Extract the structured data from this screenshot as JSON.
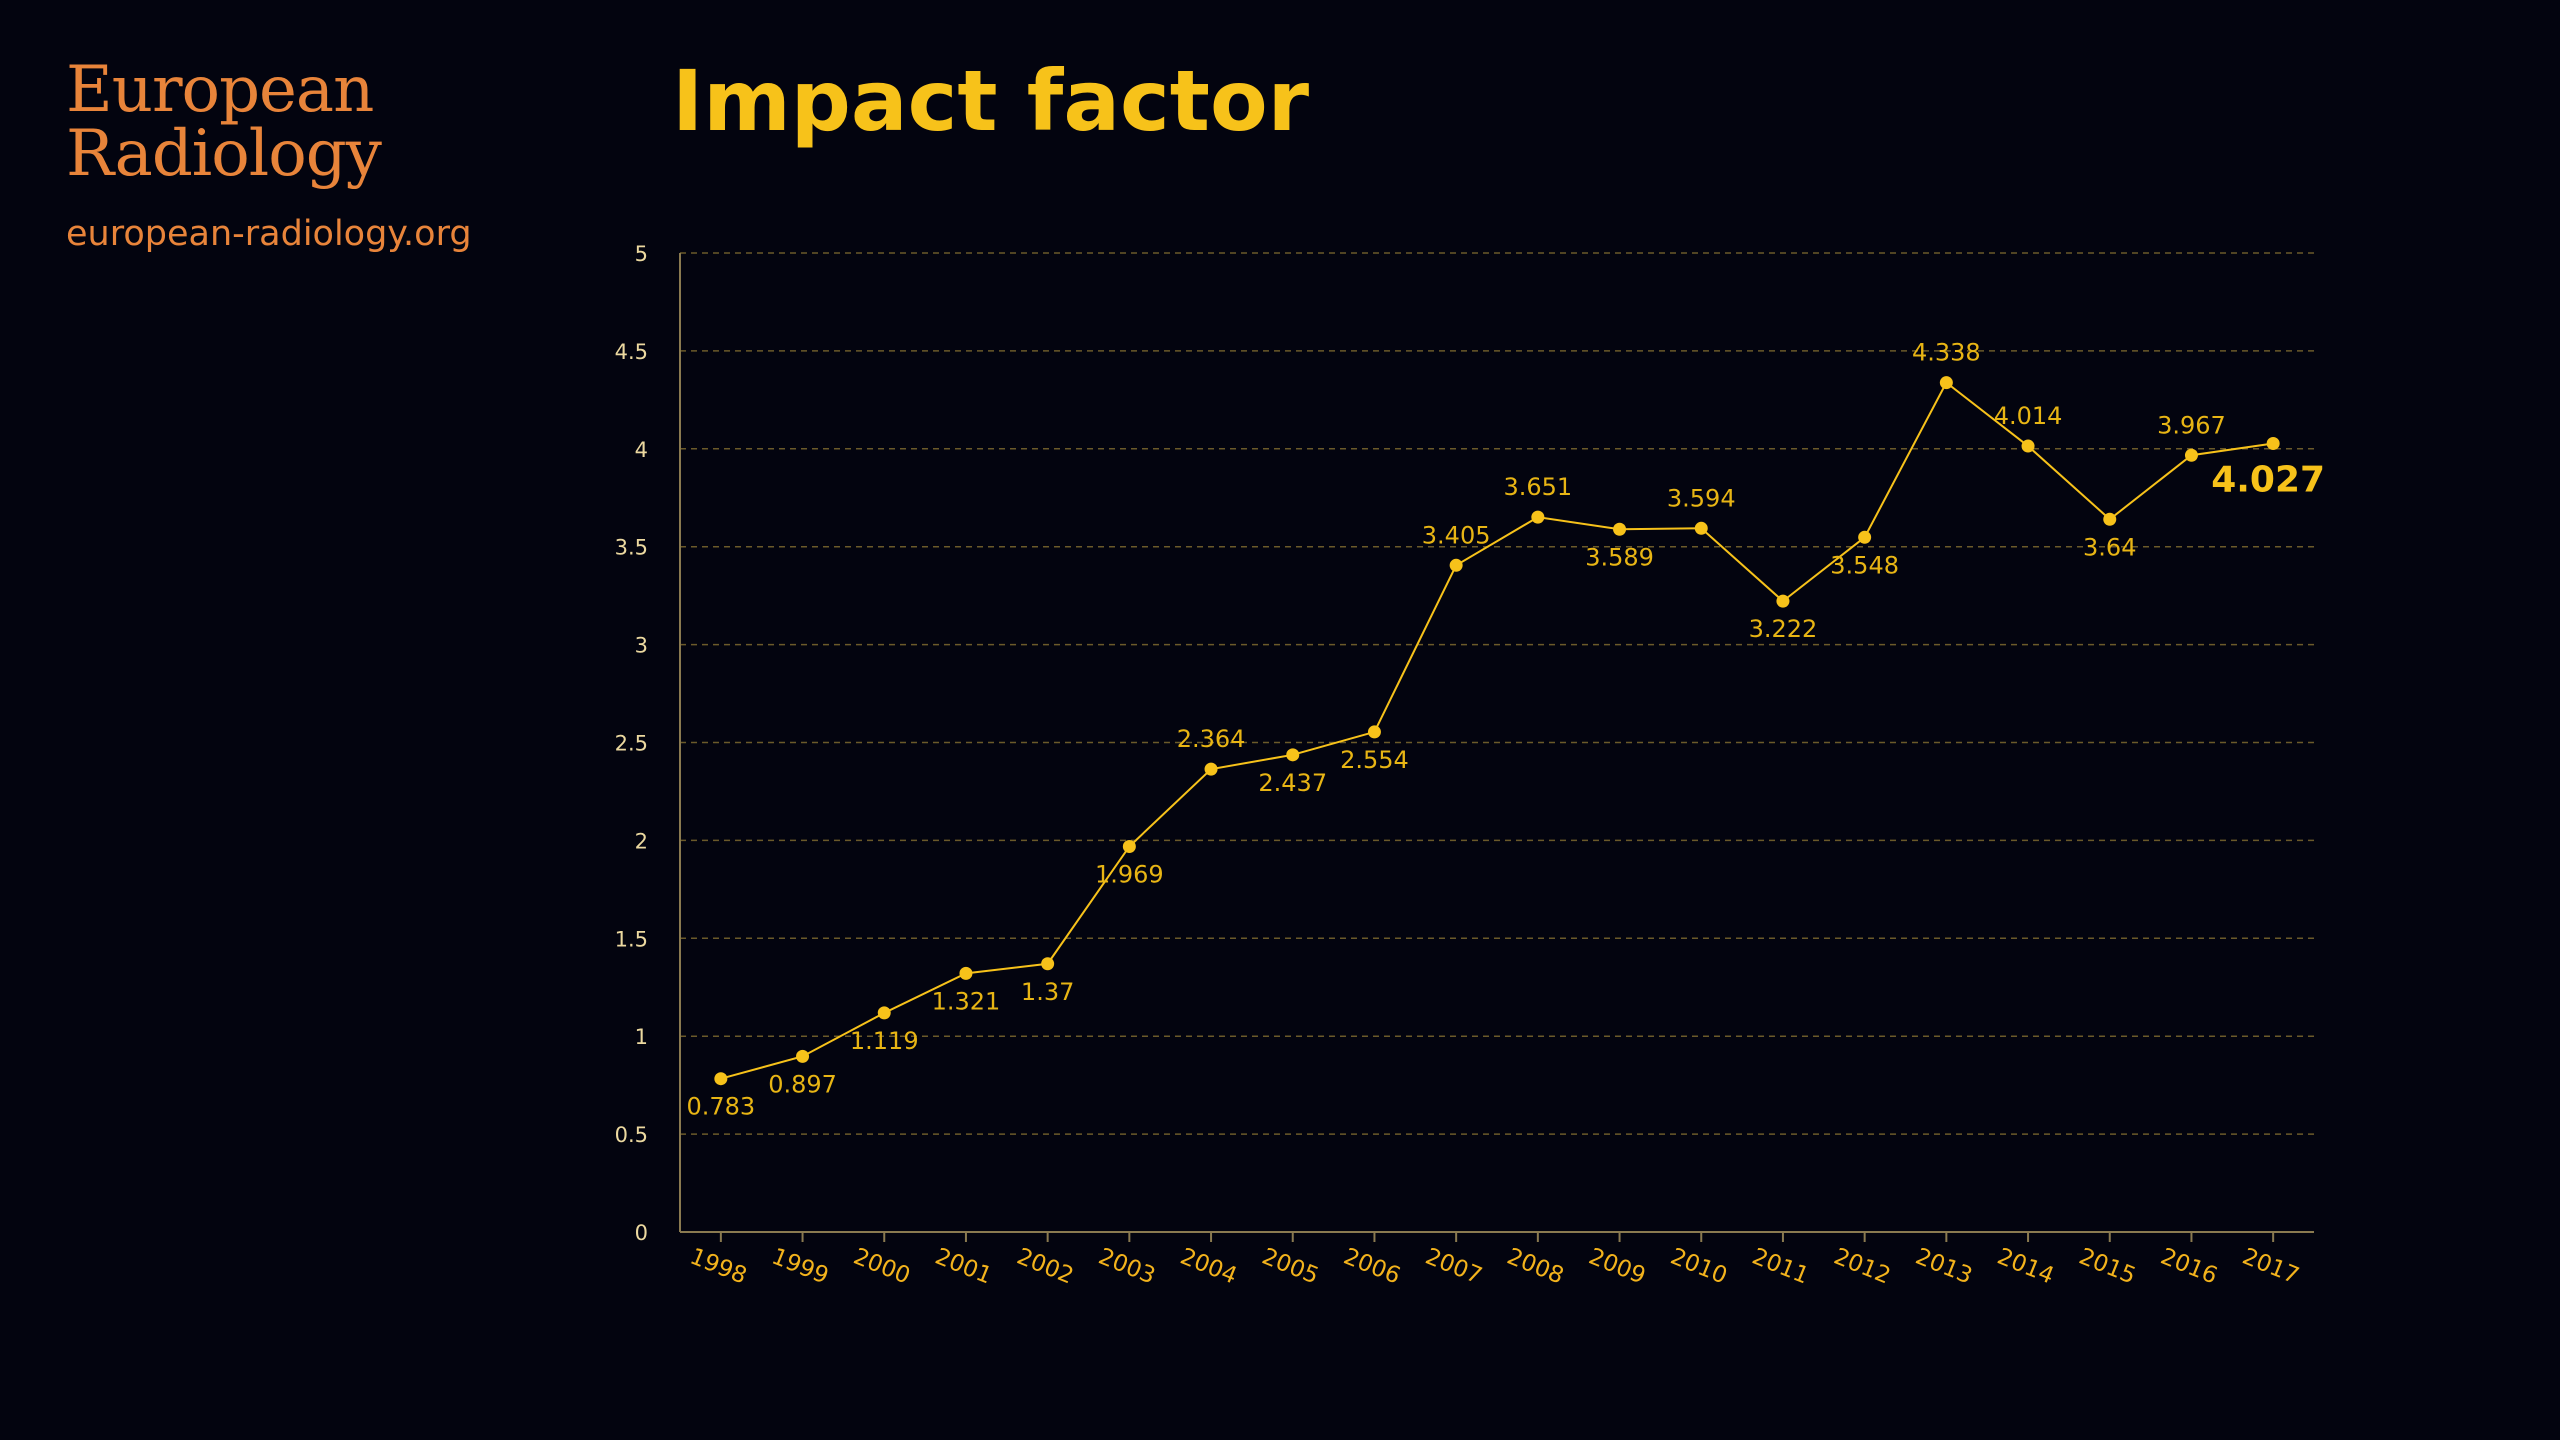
{
  "header": {
    "logo_line1": "European",
    "logo_line2": "Radiology",
    "website": "european-radiology.org",
    "title": "Impact factor"
  },
  "colors": {
    "background": "#03040f",
    "brand_orange": "#e8843a",
    "accent_yellow": "#f7c21a",
    "grid": "#6b5a2a"
  },
  "chart_data": {
    "type": "line",
    "title": "Impact factor",
    "xlabel": "",
    "ylabel": "",
    "ylim": [
      0,
      5
    ],
    "yticks": [
      "0",
      "0.5",
      "1",
      "1.5",
      "2",
      "2.5",
      "3",
      "3.5",
      "4",
      "4.5",
      "5"
    ],
    "grid": true,
    "categories": [
      "1998",
      "1999",
      "2000",
      "2001",
      "2002",
      "2003",
      "2004",
      "2005",
      "2006",
      "2007",
      "2008",
      "2009",
      "2010",
      "2011",
      "2012",
      "2013",
      "2014",
      "2015",
      "2016",
      "2017"
    ],
    "values": [
      0.783,
      0.897,
      1.119,
      1.321,
      1.37,
      1.969,
      2.364,
      2.437,
      2.554,
      3.405,
      3.651,
      3.589,
      3.594,
      3.222,
      3.548,
      4.338,
      4.014,
      3.64,
      3.967,
      4.027
    ],
    "labels": [
      "0.783",
      "0.897",
      "1.119",
      "1.321",
      "1.37",
      "1.969",
      "2.364",
      "2.437",
      "2.554",
      "3.405",
      "3.651",
      "3.589",
      "3.594",
      "3.222",
      "3.548",
      "4.338",
      "4.014",
      "3.64",
      "3.967",
      "4.027"
    ]
  }
}
